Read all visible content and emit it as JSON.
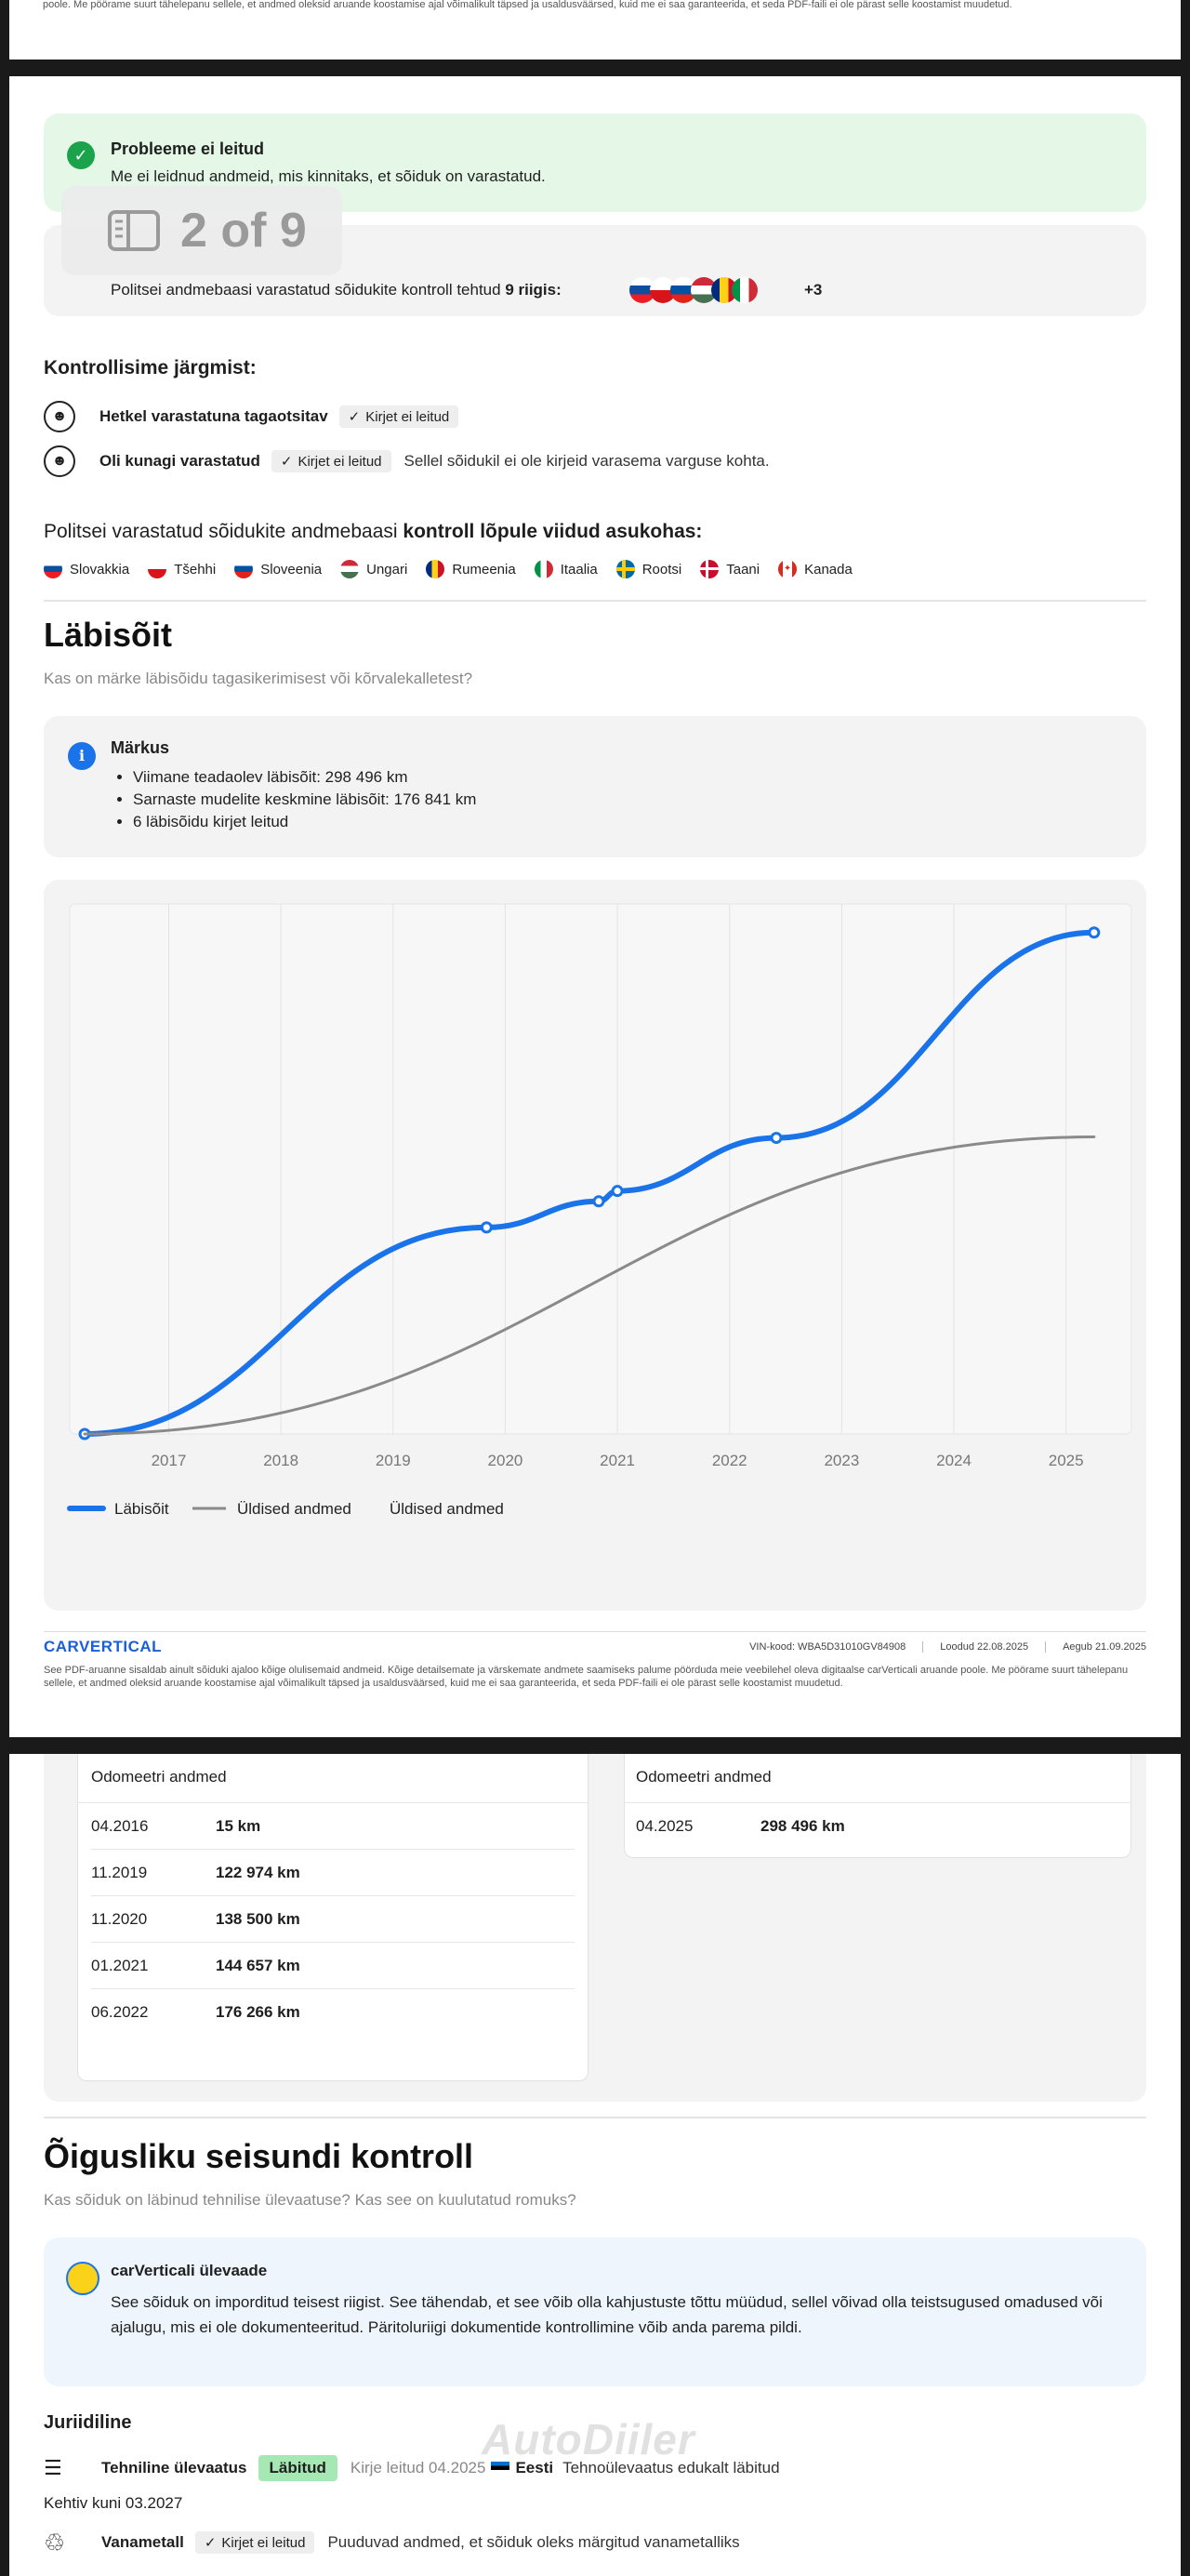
{
  "top_disclaimer": "poole. Me pöörame suurt tähelepanu sellele, et andmed oleksid aruande koostamise ajal võimalikult täpsed ja usaldusväärsed, kuid me ei saa garanteerida, et seda PDF-faili ei ole pärast selle koostamist muudetud.",
  "page_indicator": "2 of 9",
  "theft": {
    "alert_title": "Probleeme ei leitud",
    "alert_text": "Me ei leidnud andmeid, mis kinnitaks, et sõiduk on varastatud.",
    "police_text_pre": "Politsei andmebaasi varastatud sõidukite kontroll tehtud ",
    "police_text_bold": "9 riigis:",
    "police_more": "+3",
    "checked_title": "Kontrollisime järgmist:",
    "checks": [
      {
        "label": "Hetkel varastatuna tagaotsitav",
        "badge": "Kirjet ei leitud",
        "note": ""
      },
      {
        "label": "Oli kunagi varastatud",
        "badge": "Kirjet ei leitud",
        "note": "Sellel sõidukil ei ole kirjeid varasema varguse kohta."
      }
    ],
    "locations_title_pre": "Politsei varastatud sõidukite andmebaasi ",
    "locations_title_bold": "kontroll lõpule viidud asukohas:",
    "countries": [
      "Slovakkia",
      "Tšehhi",
      "Sloveenia",
      "Ungari",
      "Rumeenia",
      "Itaalia",
      "Rootsi",
      "Taani",
      "Kanada"
    ]
  },
  "mileage": {
    "title": "Läbisõit",
    "subtitle": "Kas on märke läbisõidu tagasikerimisest või kõrvalekalletest?",
    "note_title": "Märkus",
    "note_items": [
      "Viimane teadaolev läbisõit: 298 496 km",
      "Sarnaste mudelite keskmine läbisõit: 176 841 km",
      "6 läbisõidu kirjet leitud"
    ],
    "legend": [
      "Läbisõit",
      "Üldised andmed",
      "Üldised andmed"
    ]
  },
  "chart_data": {
    "type": "line",
    "title": "",
    "xlabel": "",
    "ylabel": "",
    "x_ticks": [
      "2017",
      "2018",
      "2019",
      "2020",
      "2021",
      "2022",
      "2023",
      "2024",
      "2025"
    ],
    "series": [
      {
        "name": "Läbisõit",
        "color": "#1a73e8",
        "points": [
          [
            "04.2016",
            15
          ],
          [
            "11.2019",
            122974
          ],
          [
            "11.2020",
            138500
          ],
          [
            "01.2021",
            144657
          ],
          [
            "06.2022",
            176266
          ],
          [
            "04.2025",
            298496
          ]
        ]
      },
      {
        "name": "Üldised andmed",
        "color": "#8a8a8a",
        "points": [
          [
            "04.2016",
            15
          ],
          [
            "04.2025",
            176841
          ]
        ]
      }
    ],
    "grid": true,
    "legend_position": "bottom-left"
  },
  "footer": {
    "brand": "CARVERTICAL",
    "vin": "VIN-kood: WBA5D31010GV84908",
    "created": "Loodud 22.08.2025",
    "expires": "Aegub 21.09.2025",
    "disclaimer": "See PDF-aruanne sisaldab ainult sõiduki ajaloo kõige olulisemaid andmeid. Kõige detailsemate ja värskemate andmete saamiseks palume pöörduda meie veebilehel oleva digitaalse carVerticali aruande poole. Me pöörame suurt tähelepanu sellele, et andmed oleksid aruande koostamise ajal võimalikult täpsed ja usaldusväärsed, kuid me ei saa garanteerida, et seda PDF-faili ei ole pärast selle koostamist muudetud."
  },
  "odometer": {
    "header": "Odomeetri andmed",
    "left_rows": [
      [
        "04.2016",
        "15 km"
      ],
      [
        "11.2019",
        "122 974 km"
      ],
      [
        "11.2020",
        "138 500 km"
      ],
      [
        "01.2021",
        "144 657 km"
      ],
      [
        "06.2022",
        "176 266 km"
      ]
    ],
    "right_rows": [
      [
        "04.2025",
        "298 496 km"
      ]
    ]
  },
  "legal": {
    "title": "Õigusliku seisundi kontroll",
    "subtitle": "Kas sõiduk on läbinud tehnilise ülevaatuse? Kas see on kuulutatud romuks?",
    "overview_title": "carVerticali ülevaade",
    "overview_text": "See sõiduk on imporditud teisest riigist. See tähendab, et see võib olla kahjustuste tõttu müüdud, sellel võivad olla teistsugused omadused või ajalugu, mis ei ole dokumenteeritud. Päritoluriigi dokumentide kontrollimine võib anda parema pildi.",
    "juridical": "Juriidiline",
    "inspection_label": "Tehniline ülevaatus",
    "inspection_badge": "Läbitud",
    "inspection_found": "Kirje leitud 04.2025",
    "inspection_country": "Eesti",
    "inspection_note": "Tehnoülevaatus edukalt läbitud",
    "valid_until": "Kehtiv kuni 03.2027",
    "scrap_label": "Vanametall",
    "scrap_badge": "Kirjet ei leitud",
    "scrap_note": "Puuduvad andmed, et sõiduk oleks märgitud vanametalliks"
  },
  "watermark": "AutoDiiler"
}
